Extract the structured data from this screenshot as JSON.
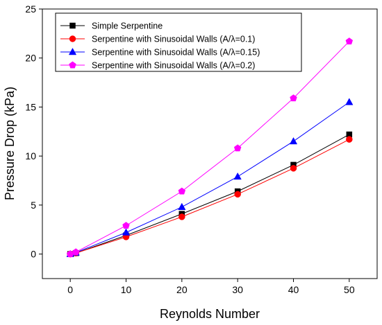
{
  "chart_data": {
    "type": "line",
    "title": "",
    "xlabel": "Reynolds Number",
    "ylabel": "Pressure Drop (kPa)",
    "xlim": [
      -5,
      55
    ],
    "ylim": [
      -2.5,
      25
    ],
    "x_ticks": [
      0,
      10,
      20,
      30,
      40,
      50
    ],
    "y_ticks": [
      0,
      5,
      10,
      15,
      20,
      25
    ],
    "grid": false,
    "legend_position": "top-left",
    "x": [
      0,
      1,
      10,
      20,
      30,
      40,
      50
    ],
    "series": [
      {
        "name": "Simple Serpentine",
        "marker": "square",
        "color": "#000000",
        "values": [
          0.0,
          0.1,
          1.9,
          4.1,
          6.4,
          9.1,
          12.2
        ]
      },
      {
        "name": "Serpentine with Sinusoidal Walls (A/λ=0.1)",
        "marker": "circle",
        "color": "#ff0000",
        "values": [
          0.0,
          0.1,
          1.75,
          3.8,
          6.1,
          8.75,
          11.7
        ]
      },
      {
        "name": "Serpentine with Sinusoidal Walls (A/λ=0.15)",
        "marker": "triangle",
        "color": "#0000ff",
        "values": [
          0.0,
          0.15,
          2.2,
          4.8,
          7.9,
          11.5,
          15.5
        ]
      },
      {
        "name": "Serpentine with Sinusoidal Walls (A/λ=0.2)",
        "marker": "pentagon",
        "color": "#ff00ff",
        "values": [
          0.0,
          0.2,
          2.9,
          6.4,
          10.8,
          15.9,
          21.7
        ]
      }
    ]
  }
}
